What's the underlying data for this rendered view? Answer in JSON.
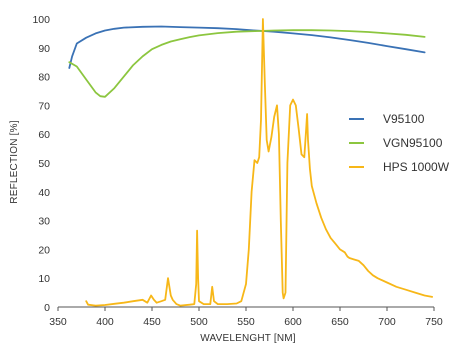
{
  "chart_data": {
    "type": "line",
    "xlabel": "WAVELENGHT [NM]",
    "ylabel": "REFLECTION [%]",
    "xlim": [
      350,
      750
    ],
    "ylim": [
      0,
      100
    ],
    "x_ticks": [
      350,
      400,
      450,
      500,
      550,
      600,
      650,
      700,
      750
    ],
    "y_ticks": [
      0,
      10,
      20,
      30,
      40,
      50,
      60,
      70,
      80,
      90,
      100
    ],
    "grid": false,
    "legend_position": "right",
    "series": [
      {
        "name": "V95100",
        "color": "#3a72b5",
        "points": [
          [
            362,
            83
          ],
          [
            365,
            87
          ],
          [
            370,
            91.5
          ],
          [
            380,
            93.5
          ],
          [
            390,
            95
          ],
          [
            400,
            96
          ],
          [
            410,
            96.6
          ],
          [
            420,
            97
          ],
          [
            440,
            97.3
          ],
          [
            460,
            97.4
          ],
          [
            480,
            97.2
          ],
          [
            500,
            97
          ],
          [
            520,
            96.8
          ],
          [
            540,
            96.5
          ],
          [
            560,
            96
          ],
          [
            580,
            95.6
          ],
          [
            600,
            95
          ],
          [
            620,
            94.4
          ],
          [
            640,
            93.6
          ],
          [
            660,
            92.7
          ],
          [
            680,
            91.7
          ],
          [
            700,
            90.6
          ],
          [
            720,
            89.5
          ],
          [
            740,
            88.4
          ]
        ]
      },
      {
        "name": "VGN95100",
        "color": "#8cc63f",
        "points": [
          [
            362,
            85
          ],
          [
            370,
            83.5
          ],
          [
            380,
            79
          ],
          [
            390,
            74.5
          ],
          [
            395,
            73.2
          ],
          [
            400,
            73
          ],
          [
            410,
            76
          ],
          [
            420,
            80
          ],
          [
            430,
            84
          ],
          [
            440,
            87
          ],
          [
            450,
            89.5
          ],
          [
            460,
            91
          ],
          [
            470,
            92.2
          ],
          [
            480,
            93
          ],
          [
            490,
            93.7
          ],
          [
            500,
            94.3
          ],
          [
            520,
            95.1
          ],
          [
            540,
            95.6
          ],
          [
            560,
            95.8
          ],
          [
            580,
            96
          ],
          [
            600,
            96.1
          ],
          [
            620,
            96.1
          ],
          [
            640,
            96
          ],
          [
            660,
            95.8
          ],
          [
            680,
            95.5
          ],
          [
            700,
            95
          ],
          [
            720,
            94.5
          ],
          [
            740,
            93.8
          ]
        ]
      },
      {
        "name": "HPS 1000W",
        "color": "#f7b718",
        "points": [
          [
            380,
            2
          ],
          [
            382,
            0.8
          ],
          [
            390,
            0.5
          ],
          [
            400,
            0.7
          ],
          [
            410,
            1.1
          ],
          [
            420,
            1.5
          ],
          [
            430,
            2
          ],
          [
            440,
            2.5
          ],
          [
            445,
            1.5
          ],
          [
            449,
            4
          ],
          [
            452,
            2.5
          ],
          [
            455,
            1.5
          ],
          [
            460,
            2
          ],
          [
            464,
            2.5
          ],
          [
            467,
            10
          ],
          [
            470,
            4
          ],
          [
            472,
            2.5
          ],
          [
            476,
            1
          ],
          [
            480,
            0.5
          ],
          [
            490,
            0.8
          ],
          [
            495,
            1
          ],
          [
            497,
            8
          ],
          [
            498,
            26.5
          ],
          [
            499,
            10
          ],
          [
            500,
            2
          ],
          [
            505,
            1
          ],
          [
            512,
            1
          ],
          [
            514,
            7
          ],
          [
            516,
            2
          ],
          [
            520,
            1
          ],
          [
            530,
            1
          ],
          [
            540,
            1.2
          ],
          [
            545,
            2
          ],
          [
            550,
            8
          ],
          [
            553,
            20
          ],
          [
            556,
            40
          ],
          [
            559,
            51
          ],
          [
            562,
            50
          ],
          [
            564,
            52
          ],
          [
            566,
            65
          ],
          [
            568,
            100
          ],
          [
            570,
            78
          ],
          [
            572,
            58
          ],
          [
            574,
            54
          ],
          [
            577,
            59
          ],
          [
            580,
            66
          ],
          [
            583,
            70
          ],
          [
            585,
            60
          ],
          [
            587,
            30
          ],
          [
            589,
            5
          ],
          [
            590,
            3
          ],
          [
            592,
            5
          ],
          [
            594,
            50
          ],
          [
            597,
            70
          ],
          [
            600,
            72
          ],
          [
            603,
            70
          ],
          [
            606,
            62
          ],
          [
            609,
            53
          ],
          [
            612,
            52
          ],
          [
            614,
            62
          ],
          [
            615,
            67
          ],
          [
            616,
            58
          ],
          [
            618,
            48
          ],
          [
            620,
            42
          ],
          [
            625,
            36
          ],
          [
            630,
            31
          ],
          [
            635,
            27
          ],
          [
            640,
            24
          ],
          [
            645,
            22
          ],
          [
            650,
            20
          ],
          [
            655,
            19
          ],
          [
            658,
            17.5
          ],
          [
            660,
            17
          ],
          [
            665,
            16.5
          ],
          [
            670,
            16
          ],
          [
            675,
            14.5
          ],
          [
            680,
            12.5
          ],
          [
            685,
            11
          ],
          [
            690,
            10
          ],
          [
            700,
            8.5
          ],
          [
            710,
            7
          ],
          [
            720,
            6
          ],
          [
            730,
            5
          ],
          [
            740,
            4
          ],
          [
            748,
            3.5
          ]
        ]
      }
    ]
  }
}
